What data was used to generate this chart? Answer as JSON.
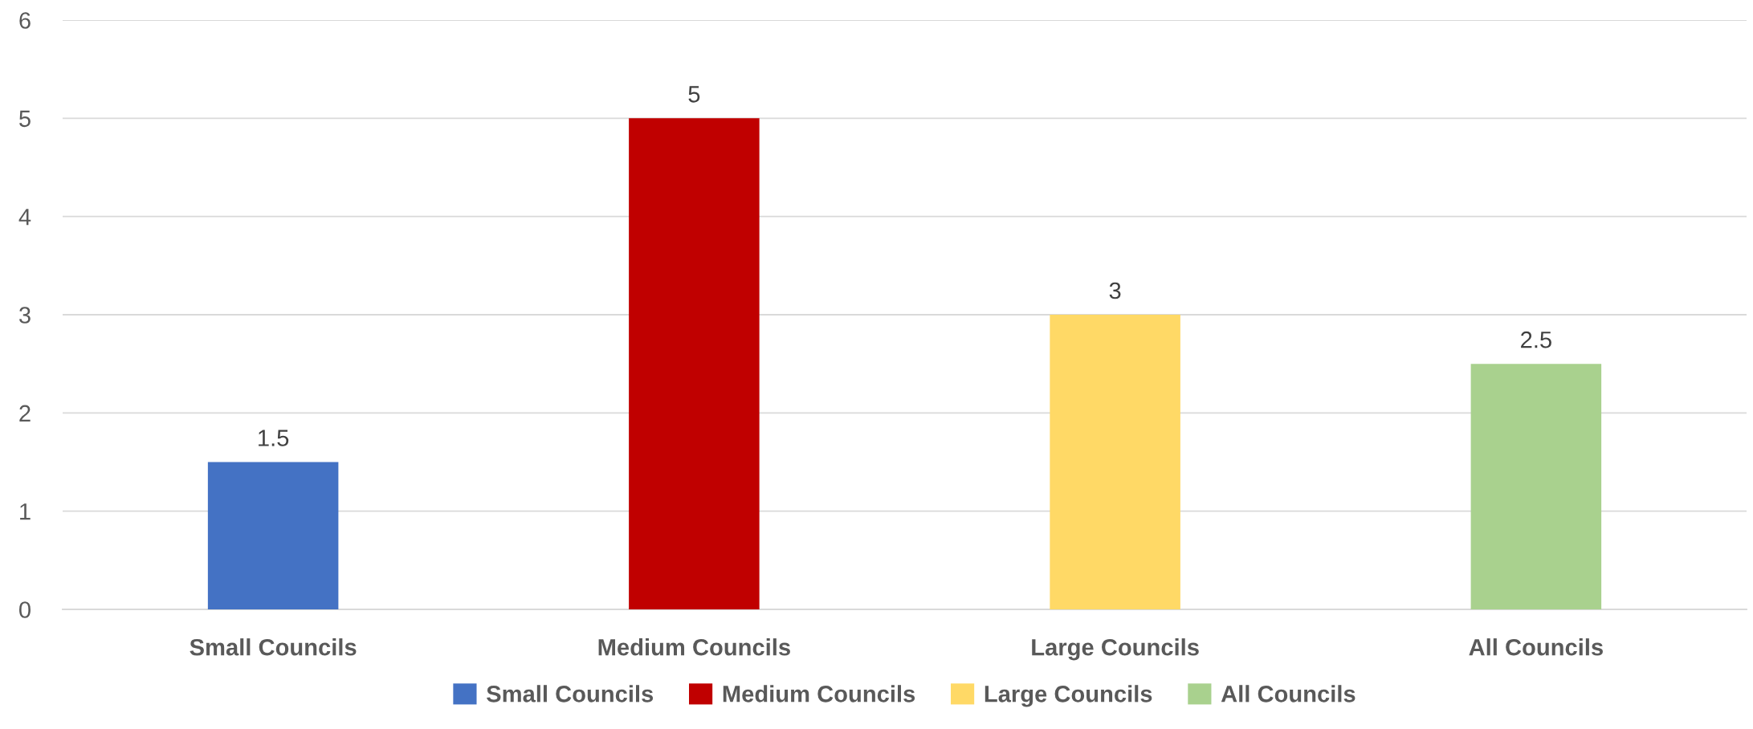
{
  "chart_data": {
    "type": "bar",
    "categories": [
      "Small Councils",
      "Medium Councils",
      "Large Councils",
      "All Councils"
    ],
    "series": [
      {
        "name": "Small Councils",
        "color": "#4472c4",
        "values": [
          1.5,
          null,
          null,
          null
        ]
      },
      {
        "name": "Medium Councils",
        "color": "#c00000",
        "values": [
          null,
          5,
          null,
          null
        ]
      },
      {
        "name": "Large Councils",
        "color": "#ffd966",
        "values": [
          null,
          null,
          3,
          null
        ]
      },
      {
        "name": "All Councils",
        "color": "#a9d18e",
        "values": [
          null,
          null,
          null,
          2.5
        ]
      }
    ],
    "stacked": true,
    "ylim": [
      0,
      6
    ],
    "yticks": [
      0,
      1,
      2,
      3,
      4,
      5,
      6
    ],
    "grid": "y",
    "legend": "bottom",
    "data_labels": true
  }
}
